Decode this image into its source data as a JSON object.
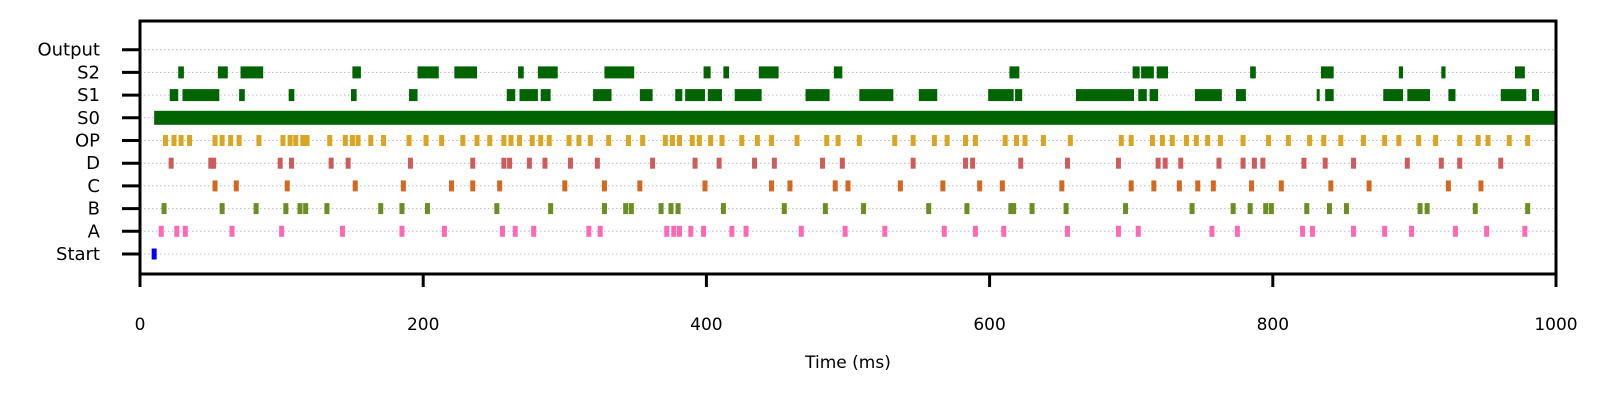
{
  "chart_data": {
    "type": "raster",
    "title": "",
    "xlabel": "Time (ms)",
    "ylabel": "",
    "xlim": [
      0,
      1000
    ],
    "xticks": [
      0,
      200,
      400,
      600,
      800,
      1000
    ],
    "xtick_labels": [
      "0",
      "200",
      "400",
      "600",
      "800",
      "1000"
    ],
    "rows": [
      "Start",
      "A",
      "B",
      "C",
      "D",
      "OP",
      "S0",
      "S1",
      "S2",
      "Output"
    ],
    "grid": "horizontal dotted per row",
    "legend": "none",
    "series": [
      {
        "row": "Start",
        "color": "#0000ff",
        "spikes": [
          10
        ]
      },
      {
        "row": "A",
        "color": "#ff69b4",
        "spikes": [
          15,
          26,
          32,
          65,
          100,
          143,
          185,
          215,
          256,
          265,
          278,
          317,
          325,
          372,
          377,
          381,
          389,
          398,
          418,
          428,
          467,
          498,
          526,
          568,
          590,
          610,
          655,
          691,
          705,
          757,
          775,
          821,
          828,
          857,
          879,
          898,
          929,
          951,
          978
        ]
      },
      {
        "row": "B",
        "color": "#6b8e23",
        "spikes": [
          17,
          58,
          82,
          103,
          113,
          117,
          132,
          170,
          185,
          203,
          252,
          290,
          328,
          343,
          347,
          368,
          375,
          380,
          412,
          455,
          484,
          511,
          557,
          584,
          615,
          617,
          630,
          654,
          696,
          743,
          772,
          784,
          795,
          799,
          824,
          840,
          852,
          904,
          909,
          943,
          980
        ]
      },
      {
        "row": "C",
        "color": "#d2691e",
        "spikes": [
          53,
          68,
          104,
          152,
          186,
          220,
          235,
          254,
          300,
          328,
          353,
          399,
          446,
          459,
          491,
          500,
          537,
          567,
          593,
          609,
          651,
          700,
          716,
          734,
          747,
          758,
          785,
          806,
          841,
          868,
          924,
          947
        ]
      },
      {
        "row": "D",
        "color": "#cd5c5c",
        "spikes": [
          22,
          50,
          52,
          99,
          107,
          135,
          147,
          191,
          235,
          257,
          261,
          275,
          286,
          304,
          323,
          362,
          392,
          409,
          434,
          448,
          482,
          496,
          546,
          583,
          588,
          622,
          655,
          691,
          719,
          724,
          735,
          762,
          779,
          787,
          793,
          822,
          837,
          857,
          895,
          919,
          932,
          961
        ]
      },
      {
        "row": "OP",
        "color": "#daa520",
        "spikes": [
          18,
          24,
          29,
          35,
          53,
          58,
          64,
          70,
          84,
          101,
          106,
          110,
          115,
          118,
          134,
          145,
          150,
          154,
          163,
          172,
          190,
          202,
          213,
          228,
          238,
          247,
          257,
          262,
          268,
          277,
          283,
          289,
          303,
          310,
          318,
          331,
          345,
          355,
          371,
          376,
          381,
          390,
          395,
          403,
          411,
          425,
          436,
          446,
          464,
          485,
          493,
          508,
          533,
          546,
          561,
          570,
          583,
          590,
          611,
          619,
          625,
          638,
          657,
          693,
          700,
          715,
          722,
          729,
          739,
          746,
          754,
          763,
          779,
          797,
          811,
          826,
          836,
          848,
          864,
          879,
          889,
          903,
          915,
          932,
          945,
          952,
          967,
          980
        ]
      },
      {
        "row": "S0",
        "color": "#006400",
        "intervals": [
          [
            10,
            1000
          ]
        ]
      },
      {
        "row": "S1",
        "color": "#006400",
        "intervals": [
          [
            21,
            27
          ],
          [
            30,
            56
          ],
          [
            70,
            74
          ],
          [
            105,
            109
          ],
          [
            149,
            153
          ],
          [
            190,
            196
          ],
          [
            259,
            265
          ],
          [
            268,
            281
          ],
          [
            283,
            290
          ],
          [
            320,
            327
          ],
          [
            327,
            333
          ],
          [
            353,
            362
          ],
          [
            378,
            383
          ],
          [
            385,
            399
          ],
          [
            401,
            411
          ],
          [
            420,
            439
          ],
          [
            470,
            487
          ],
          [
            508,
            532
          ],
          [
            550,
            563
          ],
          [
            599,
            617
          ],
          [
            618,
            623
          ],
          [
            661,
            702
          ],
          [
            705,
            711
          ],
          [
            713,
            719
          ],
          [
            745,
            764
          ],
          [
            774,
            781
          ],
          [
            831,
            833
          ],
          [
            837,
            843
          ],
          [
            878,
            892
          ],
          [
            895,
            911
          ],
          [
            924,
            929
          ],
          [
            961,
            979
          ],
          [
            983,
            988
          ]
        ]
      },
      {
        "row": "S2",
        "color": "#006400",
        "intervals": [
          [
            27,
            31
          ],
          [
            55,
            62
          ],
          [
            71,
            87
          ],
          [
            150,
            156
          ],
          [
            196,
            211
          ],
          [
            222,
            238
          ],
          [
            267,
            271
          ],
          [
            281,
            295
          ],
          [
            328,
            349
          ],
          [
            398,
            403
          ],
          [
            412,
            416
          ],
          [
            437,
            451
          ],
          [
            490,
            496
          ],
          [
            614,
            621
          ],
          [
            701,
            706
          ],
          [
            707,
            716
          ],
          [
            718,
            726
          ],
          [
            784,
            788
          ],
          [
            834,
            843
          ],
          [
            889,
            892
          ],
          [
            919,
            922
          ],
          [
            971,
            978
          ]
        ]
      },
      {
        "row": "Output",
        "color": "#000000",
        "spikes": []
      }
    ]
  }
}
